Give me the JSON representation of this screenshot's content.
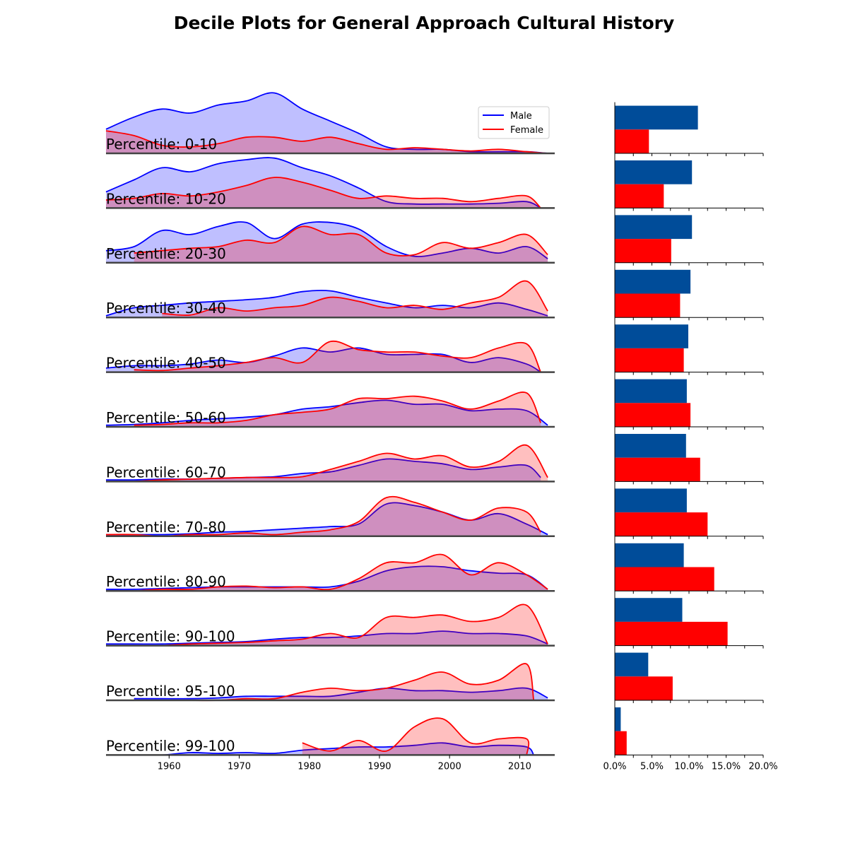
{
  "title": "Decile Plots for General Approach Cultural History",
  "legend": {
    "placement": "top-right of first panel",
    "entries": [
      {
        "name": "Male",
        "color": "#0000ff"
      },
      {
        "name": "Female",
        "color": "#ff0000"
      }
    ]
  },
  "colors": {
    "male_line": "#0000ff",
    "male_fill": "#bfbfff",
    "female_line": "#ff0000",
    "female_fill": "#ffbfbf",
    "overlap_fill": "#cf8fbf",
    "male_bar": "#004c99",
    "female_bar": "#ff0000",
    "baseline": "#444444"
  },
  "chart_data": [
    {
      "type": "area",
      "description_kind": "ridgeline density panels",
      "xlim": [
        1951,
        2015
      ],
      "xticks": [
        1960,
        1970,
        1980,
        1990,
        2000,
        2010
      ],
      "x_sample_years": [
        1951,
        1955,
        1959,
        1963,
        1967,
        1971,
        1975,
        1979,
        1983,
        1987,
        1991,
        1995,
        1999,
        2003,
        2007,
        2011,
        2014
      ],
      "grid": false,
      "panels": [
        {
          "label": "Percentile: 0-10",
          "male": [
            0.3,
            0.45,
            0.55,
            0.5,
            0.6,
            0.65,
            0.75,
            0.55,
            0.4,
            0.25,
            0.08,
            0.05,
            0.05,
            0.02,
            0.02,
            0.02,
            0.0
          ],
          "female": [
            0.28,
            0.22,
            0.1,
            0.08,
            0.12,
            0.2,
            0.2,
            0.15,
            0.2,
            0.12,
            0.05,
            0.07,
            0.05,
            0.03,
            0.05,
            0.02,
            0.0
          ],
          "male_range": [
            1951,
            2014
          ],
          "female_range": [
            1951,
            2014
          ]
        },
        {
          "label": "Percentile: 10-20",
          "male": [
            0.2,
            0.35,
            0.5,
            0.45,
            0.55,
            0.6,
            0.62,
            0.5,
            0.4,
            0.25,
            0.08,
            0.05,
            0.05,
            0.05,
            0.06,
            0.08,
            0.0
          ],
          "female": [
            0.1,
            0.12,
            0.18,
            0.15,
            0.2,
            0.28,
            0.38,
            0.32,
            0.22,
            0.12,
            0.15,
            0.12,
            0.12,
            0.08,
            0.12,
            0.15,
            0.0
          ],
          "male_range": [
            1951,
            2013
          ],
          "female_range": [
            1951,
            2013
          ]
        },
        {
          "label": "Percentile: 20-30",
          "male": [
            0.15,
            0.2,
            0.4,
            0.35,
            0.45,
            0.5,
            0.3,
            0.48,
            0.5,
            0.42,
            0.2,
            0.08,
            0.12,
            0.18,
            0.12,
            0.2,
            0.05
          ],
          "female": [
            0.05,
            0.12,
            0.15,
            0.18,
            0.2,
            0.28,
            0.25,
            0.45,
            0.35,
            0.35,
            0.12,
            0.1,
            0.25,
            0.18,
            0.25,
            0.35,
            0.1
          ],
          "male_range": [
            1951,
            2014
          ],
          "female_range": [
            1953,
            2014
          ]
        },
        {
          "label": "Percentile: 30-40",
          "male": [
            0.02,
            0.12,
            0.15,
            0.18,
            0.2,
            0.22,
            0.25,
            0.32,
            0.33,
            0.25,
            0.18,
            0.12,
            0.15,
            0.12,
            0.18,
            0.1,
            0.02
          ],
          "female": [
            0.0,
            0.05,
            0.05,
            0.03,
            0.12,
            0.08,
            0.12,
            0.15,
            0.25,
            0.2,
            0.12,
            0.15,
            0.1,
            0.18,
            0.25,
            0.45,
            0.08
          ],
          "male_range": [
            1951,
            2014
          ],
          "female_range": [
            1956,
            2014
          ]
        },
        {
          "label": "Percentile: 40-50",
          "male": [
            0.05,
            0.08,
            0.08,
            0.1,
            0.15,
            0.12,
            0.2,
            0.3,
            0.25,
            0.3,
            0.22,
            0.22,
            0.22,
            0.12,
            0.18,
            0.1,
            0.0
          ],
          "female": [
            0.05,
            0.03,
            0.02,
            0.05,
            0.08,
            0.12,
            0.18,
            0.12,
            0.38,
            0.28,
            0.25,
            0.25,
            0.2,
            0.18,
            0.3,
            0.35,
            0.0
          ],
          "male_range": [
            1951,
            2013
          ],
          "female_range": [
            1953,
            2013
          ]
        },
        {
          "label": "Percentile: 50-60",
          "male": [
            0.02,
            0.03,
            0.05,
            0.08,
            0.1,
            0.12,
            0.15,
            0.22,
            0.25,
            0.3,
            0.33,
            0.28,
            0.28,
            0.2,
            0.22,
            0.2,
            0.02
          ],
          "female": [
            0.0,
            0.02,
            0.03,
            0.05,
            0.05,
            0.08,
            0.15,
            0.18,
            0.22,
            0.35,
            0.35,
            0.38,
            0.32,
            0.22,
            0.32,
            0.42,
            0.05
          ],
          "male_range": [
            1951,
            2014
          ],
          "female_range": [
            1954,
            2013
          ]
        },
        {
          "label": "Percentile: 60-70",
          "male": [
            0.02,
            0.02,
            0.03,
            0.03,
            0.04,
            0.05,
            0.06,
            0.1,
            0.12,
            0.2,
            0.28,
            0.25,
            0.22,
            0.15,
            0.18,
            0.2,
            0.05
          ],
          "female": [
            0.0,
            0.0,
            0.02,
            0.03,
            0.04,
            0.05,
            0.05,
            0.06,
            0.15,
            0.25,
            0.35,
            0.28,
            0.32,
            0.18,
            0.25,
            0.45,
            0.05
          ],
          "male_range": [
            1951,
            2013
          ],
          "female_range": [
            1954,
            2014
          ]
        },
        {
          "label": "Percentile: 70-80",
          "male": [
            0.02,
            0.02,
            0.02,
            0.03,
            0.05,
            0.06,
            0.08,
            0.1,
            0.12,
            0.15,
            0.4,
            0.38,
            0.3,
            0.2,
            0.28,
            0.15,
            0.02
          ],
          "female": [
            0.02,
            0.02,
            0.0,
            0.02,
            0.02,
            0.04,
            0.02,
            0.05,
            0.08,
            0.18,
            0.48,
            0.42,
            0.3,
            0.2,
            0.35,
            0.3,
            0.05
          ],
          "male_range": [
            1951,
            2014
          ],
          "female_range": [
            1951,
            2013
          ]
        },
        {
          "label": "Percentile: 80-90",
          "male": [
            0.02,
            0.02,
            0.03,
            0.04,
            0.05,
            0.05,
            0.05,
            0.05,
            0.05,
            0.12,
            0.25,
            0.3,
            0.3,
            0.25,
            0.22,
            0.2,
            0.02
          ],
          "female": [
            0.0,
            0.0,
            0.02,
            0.02,
            0.05,
            0.06,
            0.04,
            0.05,
            0.02,
            0.15,
            0.35,
            0.35,
            0.45,
            0.2,
            0.35,
            0.2,
            0.02
          ],
          "male_range": [
            1951,
            2014
          ],
          "female_range": [
            1951,
            2014
          ]
        },
        {
          "label": "Percentile: 90-100",
          "male": [
            0.02,
            0.02,
            0.02,
            0.03,
            0.04,
            0.05,
            0.08,
            0.1,
            0.1,
            0.12,
            0.15,
            0.15,
            0.18,
            0.15,
            0.15,
            0.12,
            0.02
          ],
          "female": [
            0.0,
            0.0,
            0.0,
            0.02,
            0.03,
            0.04,
            0.06,
            0.08,
            0.15,
            0.1,
            0.35,
            0.35,
            0.38,
            0.3,
            0.35,
            0.5,
            0.02
          ],
          "male_range": [
            1951,
            2014
          ],
          "female_range": [
            1956,
            2014
          ]
        },
        {
          "label": "Percentile: 95-100",
          "male": [
            0.0,
            0.02,
            0.02,
            0.02,
            0.03,
            0.05,
            0.05,
            0.05,
            0.05,
            0.1,
            0.15,
            0.12,
            0.12,
            0.1,
            0.12,
            0.15,
            0.03
          ],
          "female": [
            0.0,
            0.0,
            0.0,
            0.0,
            0.0,
            0.02,
            0.02,
            0.1,
            0.15,
            0.12,
            0.15,
            0.25,
            0.35,
            0.2,
            0.25,
            0.45,
            0.0
          ],
          "male_range": [
            1953,
            2014
          ],
          "female_range": [
            1960,
            2012
          ]
        },
        {
          "label": "Percentile: 99-100",
          "male": [
            0.0,
            0.0,
            0.0,
            0.03,
            0.02,
            0.03,
            0.02,
            0.06,
            0.08,
            0.1,
            0.1,
            0.12,
            0.15,
            0.1,
            0.12,
            0.1,
            0.0
          ],
          "female": [
            0.0,
            0.0,
            0.0,
            0.0,
            0.0,
            0.0,
            0.0,
            0.15,
            0.05,
            0.18,
            0.05,
            0.35,
            0.45,
            0.15,
            0.2,
            0.2,
            0.0
          ],
          "male_range": [
            1953,
            2012
          ],
          "female_range": [
            1979,
            2011
          ]
        }
      ]
    },
    {
      "type": "bar",
      "orientation": "horizontal",
      "xlim": [
        0,
        20
      ],
      "xticks": [
        "0.0%",
        "5.0%",
        "10.0%",
        "15.0%",
        "20.0%"
      ],
      "grid": false,
      "categories": [
        "0-10",
        "10-20",
        "20-30",
        "30-40",
        "40-50",
        "50-60",
        "60-70",
        "70-80",
        "80-90",
        "90-100",
        "95-100",
        "99-100"
      ],
      "series": [
        {
          "name": "Male",
          "values": [
            11.2,
            10.4,
            10.4,
            10.2,
            9.9,
            9.7,
            9.6,
            9.7,
            9.3,
            9.1,
            4.5,
            0.8
          ]
        },
        {
          "name": "Female",
          "values": [
            4.6,
            6.6,
            7.6,
            8.8,
            9.3,
            10.2,
            11.5,
            12.5,
            13.4,
            15.2,
            7.8,
            1.6
          ]
        }
      ]
    }
  ]
}
